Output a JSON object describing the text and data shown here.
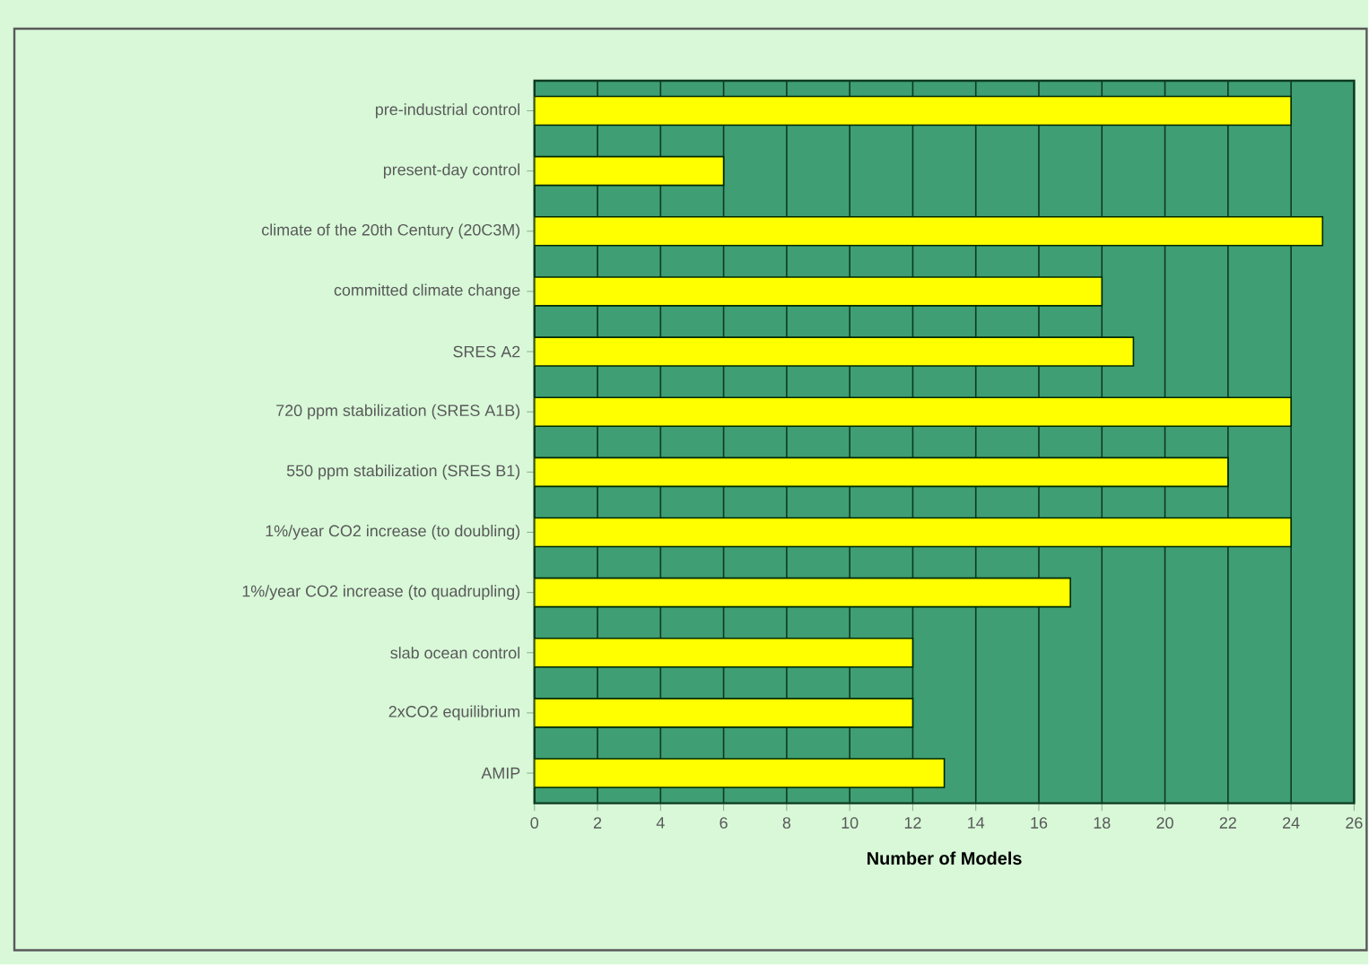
{
  "chart_data": {
    "type": "bar",
    "orientation": "horizontal",
    "xlabel": "Number of Models",
    "categories": [
      "pre-industrial control",
      "present-day control",
      "climate of the 20th Century (20C3M)",
      "committed climate change",
      "SRES A2",
      "720 ppm stabilization (SRES A1B)",
      "550 ppm stabilization (SRES B1)",
      "1%/year CO2 increase (to doubling)",
      "1%/year CO2 increase (to quadrupling)",
      "slab ocean control",
      "2xCO2 equilibrium",
      "AMIP"
    ],
    "values": [
      24,
      6,
      25,
      18,
      19,
      24,
      22,
      24,
      17,
      12,
      12,
      13
    ],
    "color": "#ffff00",
    "xlim": [
      0,
      26
    ],
    "xticks": [
      0,
      2,
      4,
      6,
      8,
      10,
      12,
      14,
      16,
      18,
      20,
      22,
      24,
      26
    ],
    "grid": "x"
  }
}
